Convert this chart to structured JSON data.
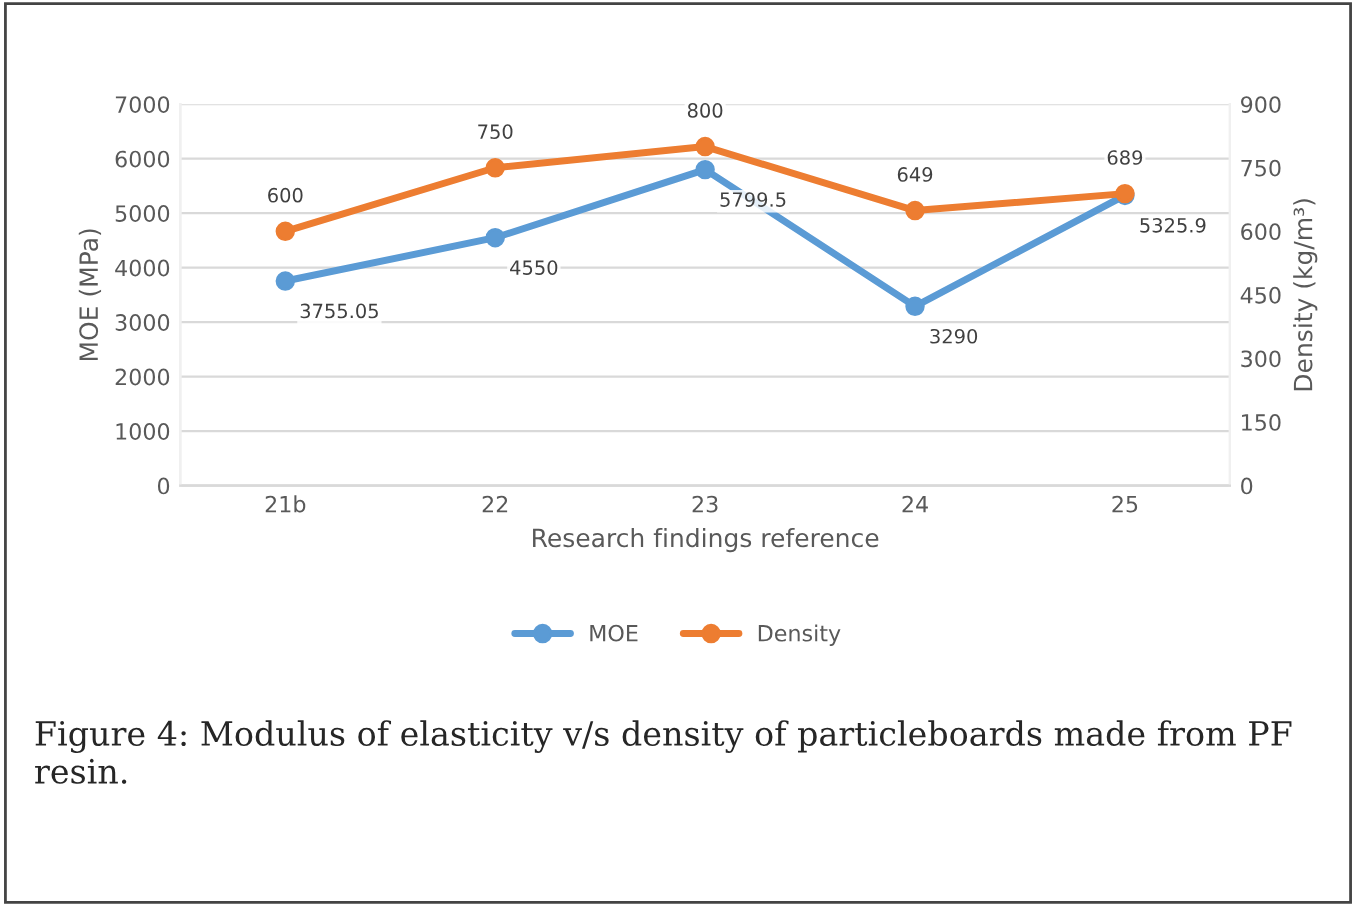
{
  "chart_data": {
    "type": "line",
    "categories": [
      "21b",
      "22",
      "23",
      "24",
      "25"
    ],
    "xlabel": "Research findings reference",
    "ylabel": "MOE (MPa)",
    "y2label": "Density (kg/m³)",
    "series": [
      {
        "name": "MOE",
        "color": "#5b9bd5",
        "values": [
          3755.05,
          4550,
          5799.5,
          3290,
          5325.9
        ]
      },
      {
        "name": "Density",
        "color": "#ed7d31",
        "axis": "y2",
        "values": [
          600,
          750,
          800,
          649,
          689
        ]
      }
    ],
    "ylim": [
      0,
      7000
    ],
    "yticks": [
      0,
      1000,
      2000,
      3000,
      4000,
      5000,
      6000,
      7000
    ],
    "y2lim": [
      0,
      900
    ],
    "y2ticks": [
      0,
      150,
      300,
      450,
      600,
      750,
      900
    ],
    "data_labels": true,
    "grid": "y",
    "legend": "bottom",
    "marker": "circle",
    "line_style": "solid",
    "annotations": [
      "Figure 4: Modulus of elasticity v/s density of particleboards made from PF resin."
    ]
  }
}
